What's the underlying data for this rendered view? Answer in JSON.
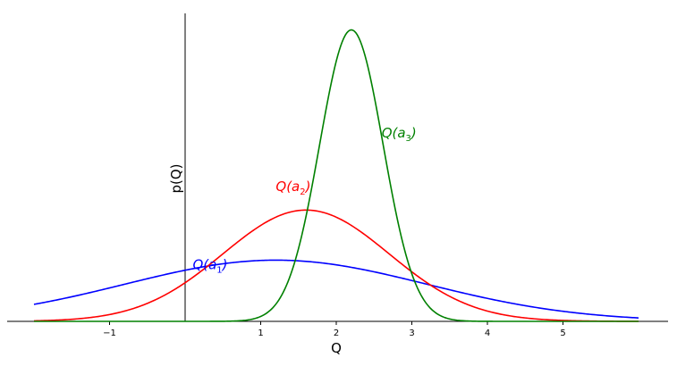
{
  "chart_data": {
    "type": "line",
    "xlabel": "Q",
    "ylabel": "p(Q)",
    "xlim": [
      -2,
      6.4
    ],
    "ylim": [
      0,
      0.96
    ],
    "grid": false,
    "legend": "none",
    "x_ticks": [
      -1,
      1,
      2,
      3,
      4,
      5
    ],
    "series": [
      {
        "label_base": "Q(a",
        "label_sub": "1",
        "label_close": ")",
        "color": "#0000ff",
        "mean": 1.2,
        "std": 2.0,
        "x_range": [
          -2,
          6
        ],
        "label_pos": [
          0.1,
          0.17
        ],
        "peak": 0.1995
      },
      {
        "label_base": "Q(a",
        "label_sub": "2",
        "label_close": ")",
        "color": "#ff0000",
        "mean": 1.6,
        "std": 1.1,
        "x_range": [
          -2,
          6
        ],
        "label_pos": [
          1.2,
          0.425
        ],
        "peak": 0.3627
      },
      {
        "label_base": "Q(a",
        "label_sub": "3",
        "label_close": ")",
        "color": "#008000",
        "mean": 2.2,
        "std": 0.42,
        "x_range": [
          -2,
          6
        ],
        "label_pos": [
          2.6,
          0.6
        ],
        "peak": 0.9499
      }
    ]
  }
}
